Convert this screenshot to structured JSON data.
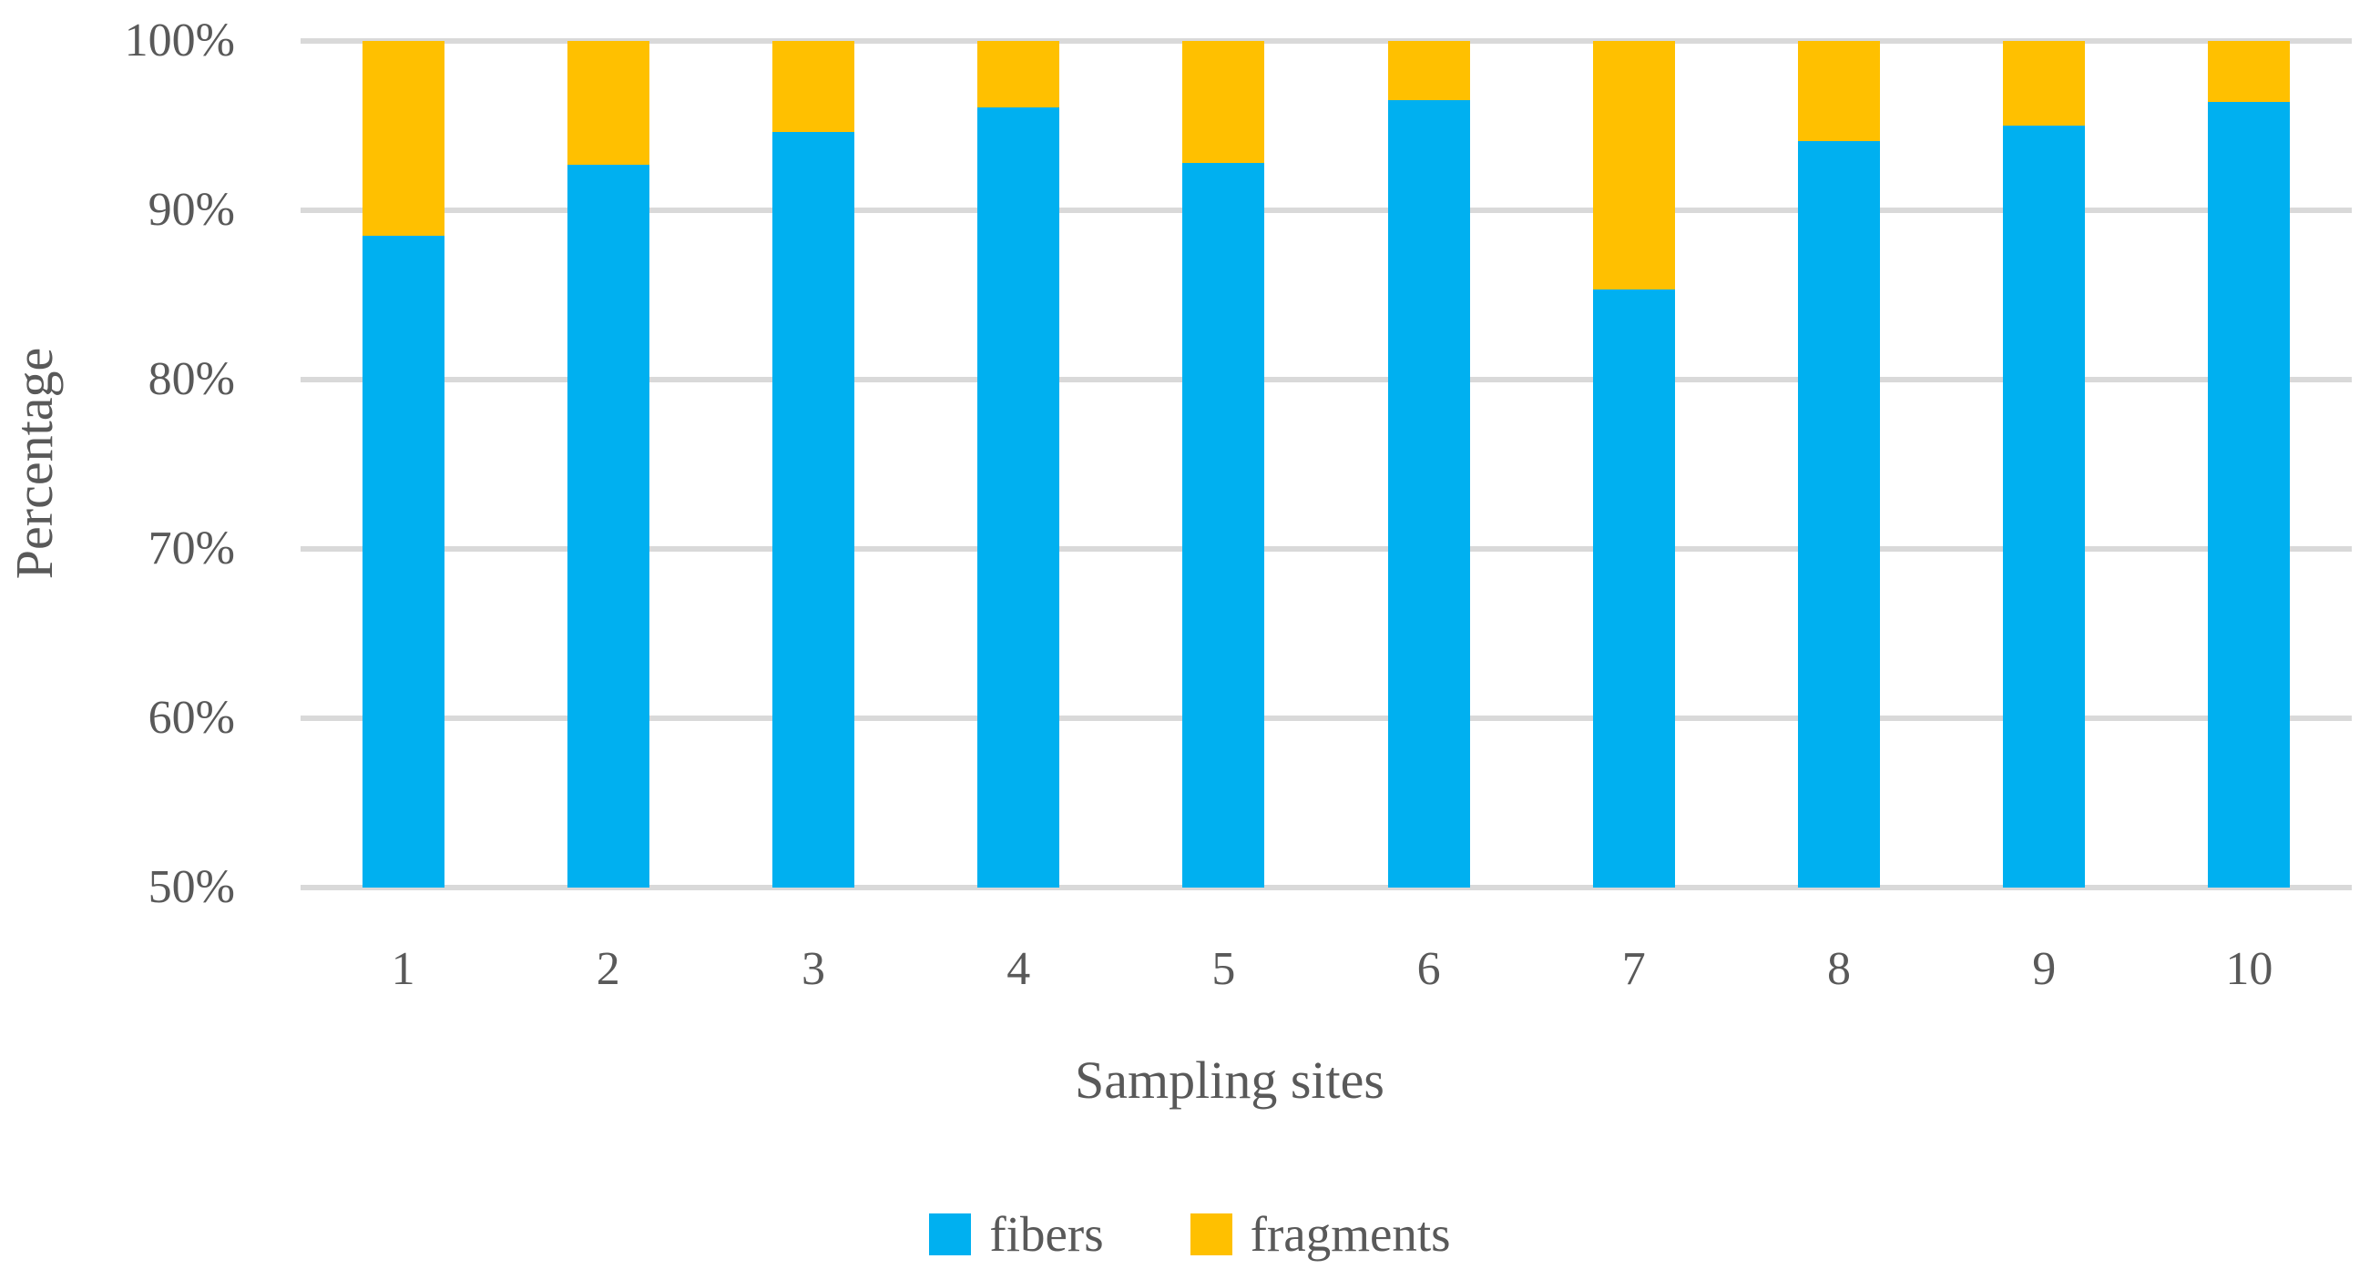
{
  "chart_data": {
    "type": "bar",
    "stacked": true,
    "orientation": "vertical",
    "title": "",
    "xlabel": "Sampling sites",
    "ylabel": "Percentage",
    "categories": [
      "1",
      "2",
      "3",
      "4",
      "5",
      "6",
      "7",
      "8",
      "9",
      "10"
    ],
    "series": [
      {
        "name": "fibers",
        "color": "#00B0F0",
        "values": [
          88.5,
          92.7,
          94.6,
          96.1,
          92.8,
          96.5,
          85.3,
          94.1,
          95.0,
          96.4
        ]
      },
      {
        "name": "fragments",
        "color": "#FFC000",
        "values": [
          11.5,
          7.3,
          5.4,
          3.9,
          7.2,
          3.5,
          14.7,
          5.9,
          5.0,
          3.6
        ]
      }
    ],
    "ylim": [
      50,
      100
    ],
    "ytick_labels": [
      "100%",
      "90%",
      "80%",
      "70%",
      "60%",
      "50%"
    ],
    "ytick_values": [
      100,
      90,
      80,
      70,
      60,
      50
    ],
    "grid": true,
    "gridline_color": "#D9D9D9",
    "text_color": "#595959",
    "background_color": "#FFFFFF",
    "legend_position": "bottom",
    "legend_labels": [
      "fibers",
      "fragments"
    ]
  }
}
